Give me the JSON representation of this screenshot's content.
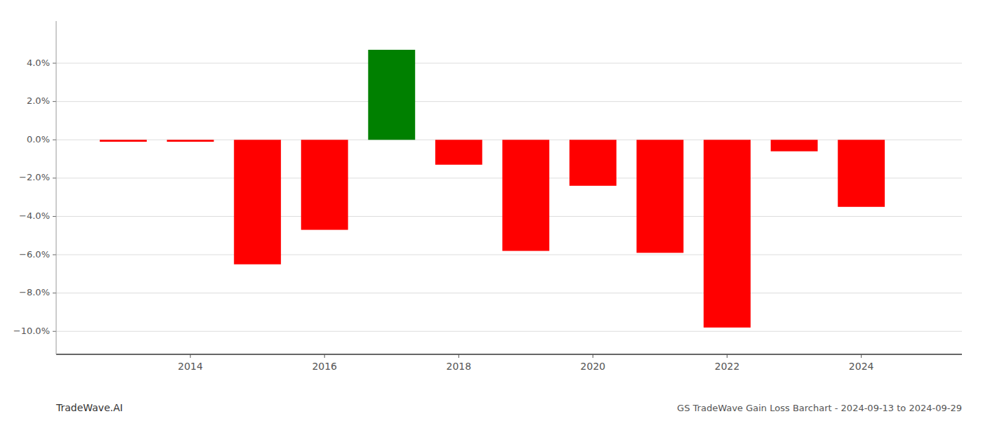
{
  "chart_data": {
    "type": "bar",
    "x": [
      2013,
      2014,
      2015,
      2016,
      2017,
      2018,
      2019,
      2020,
      2021,
      2022,
      2023,
      2024
    ],
    "values": [
      -0.001,
      -0.001,
      -0.065,
      -0.047,
      0.047,
      -0.013,
      -0.058,
      -0.024,
      -0.059,
      -0.098,
      -0.006,
      -0.035
    ],
    "colors": [
      "#ff0000",
      "#ff0000",
      "#ff0000",
      "#ff0000",
      "#008000",
      "#ff0000",
      "#ff0000",
      "#ff0000",
      "#ff0000",
      "#ff0000",
      "#ff0000",
      "#ff0000"
    ],
    "xlim": [
      2012.0,
      2025.5
    ],
    "ylim": [
      -0.112,
      0.062
    ],
    "xticks": [
      2014,
      2016,
      2018,
      2020,
      2022,
      2024
    ],
    "yticks": [
      {
        "value": -0.1,
        "label": "−10.0%"
      },
      {
        "value": -0.08,
        "label": "−8.0%"
      },
      {
        "value": -0.06,
        "label": "−6.0%"
      },
      {
        "value": -0.04,
        "label": "−4.0%"
      },
      {
        "value": -0.02,
        "label": "−2.0%"
      },
      {
        "value": 0.0,
        "label": "0.0%"
      },
      {
        "value": 0.02,
        "label": "2.0%"
      },
      {
        "value": 0.04,
        "label": "4.0%"
      }
    ],
    "grid": true,
    "annotations": [
      "TradeWave.AI",
      "GS TradeWave Gain Loss Barchart - 2024-09-13 to 2024-09-29"
    ]
  }
}
